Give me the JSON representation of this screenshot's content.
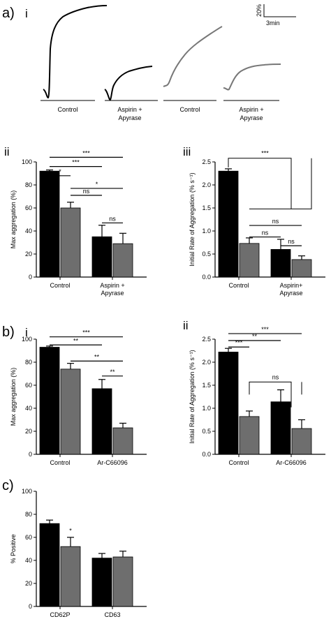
{
  "panel_labels": {
    "a": "a)",
    "a_i": "i",
    "a_ii": "ii",
    "a_iii": "iii",
    "b": "b)",
    "b_i": "i",
    "b_ii": "ii",
    "c": "c)"
  },
  "traces": {
    "scale_y": "20%",
    "scale_x": "3min",
    "labels": [
      "Control",
      "Aspirin +",
      "Apyrase",
      "Control",
      "Aspirin +",
      "Apyrase"
    ]
  },
  "colors": {
    "black_series": "#000000",
    "grey_series": "#6e6e6e"
  },
  "chart_data": [
    {
      "id": "a-ii",
      "type": "bar",
      "ylabel": "Max aggregation (%)",
      "ylim": [
        0,
        100
      ],
      "yticks": [
        0,
        20,
        40,
        60,
        80,
        100
      ],
      "ytick_labels": [
        "0",
        "20",
        "40",
        "60",
        "80",
        "100"
      ],
      "categories": [
        "Control",
        "Aspirin +|Apyrase"
      ],
      "series": [
        {
          "values": [
            92,
            35
          ],
          "errors": [
            1,
            10
          ]
        },
        {
          "values": [
            60,
            29
          ],
          "errors": [
            5,
            9
          ]
        }
      ],
      "significance": [
        {
          "label": "***",
          "y": 104,
          "x1": [
            0,
            0
          ],
          "x2": [
            1,
            1
          ],
          "style": "line"
        },
        {
          "label": "***",
          "y": 96,
          "x1": [
            0,
            0
          ],
          "x2": [
            1,
            0
          ],
          "style": "line"
        },
        {
          "label": "*",
          "y": 88,
          "x1": [
            0,
            0
          ],
          "x2": [
            0,
            1
          ],
          "style": "line"
        },
        {
          "label": "ns",
          "y": 71,
          "x1": [
            0,
            1
          ],
          "x2": [
            1,
            0
          ],
          "style": "line"
        },
        {
          "label": "*",
          "y": 77,
          "x1": [
            0,
            1
          ],
          "x2": [
            1,
            1
          ],
          "style": "line"
        },
        {
          "label": "ns",
          "y": 47,
          "x1": [
            1,
            0
          ],
          "x2": [
            1,
            1
          ],
          "style": "line"
        }
      ]
    },
    {
      "id": "a-iii",
      "type": "bar",
      "ylabel": "Initial Rate of Aggregation (% s⁻¹)",
      "ylim": [
        0,
        2.5
      ],
      "yticks": [
        0,
        0.5,
        1,
        1.5,
        2,
        2.5
      ],
      "ytick_labels": [
        "0.0",
        "0.5",
        "1.0",
        "1.5",
        "2.0",
        "2.5"
      ],
      "categories": [
        "Control",
        "Aspirin+|Apyrase"
      ],
      "series": [
        {
          "values": [
            2.3,
            0.6
          ],
          "errors": [
            0.05,
            0.22
          ]
        },
        {
          "values": [
            0.73,
            0.38
          ],
          "errors": [
            0.12,
            0.08
          ]
        }
      ],
      "significance": [
        {
          "label": "***",
          "y": 2.58,
          "x1": [
            0,
            0
          ],
          "x2": [
            1,
            0.5
          ],
          "style": "bracket",
          "drop": 1.1
        },
        {
          "label": "ns",
          "y": 1.12,
          "x1": [
            0,
            1
          ],
          "x2": [
            1,
            1
          ],
          "style": "line"
        },
        {
          "label": "ns",
          "y": 0.87,
          "x1": [
            0,
            1
          ],
          "x2": [
            1,
            0
          ],
          "style": "line"
        },
        {
          "label": "ns",
          "y": 0.68,
          "x1": [
            1,
            0
          ],
          "x2": [
            1,
            1
          ],
          "style": "line"
        }
      ]
    },
    {
      "id": "b-i",
      "type": "bar",
      "ylabel": "Max aggregation (%)",
      "ylim": [
        0,
        100
      ],
      "yticks": [
        0,
        20,
        40,
        60,
        80,
        100
      ],
      "ytick_labels": [
        "0",
        "20",
        "40",
        "60",
        "80",
        "100"
      ],
      "categories": [
        "Control",
        "Ar-C66096"
      ],
      "series": [
        {
          "values": [
            93,
            57
          ],
          "errors": [
            1,
            8
          ]
        },
        {
          "values": [
            74,
            23
          ],
          "errors": [
            5,
            4
          ]
        }
      ],
      "significance": [
        {
          "label": "***",
          "y": 102,
          "x1": [
            0,
            0
          ],
          "x2": [
            1,
            1
          ],
          "style": "line"
        },
        {
          "label": "**",
          "y": 95,
          "x1": [
            0,
            0
          ],
          "x2": [
            1,
            0
          ],
          "style": "line"
        },
        {
          "label": "**",
          "y": 81,
          "x1": [
            0,
            1
          ],
          "x2": [
            1,
            1
          ],
          "style": "line"
        },
        {
          "label": "**",
          "y": 68,
          "x1": [
            1,
            0
          ],
          "x2": [
            1,
            1
          ],
          "style": "line"
        }
      ]
    },
    {
      "id": "b-ii",
      "type": "bar",
      "ylabel": "Initial Rate of Aggregation (% s⁻¹)",
      "ylim": [
        0,
        2.5
      ],
      "yticks": [
        0,
        0.5,
        1,
        1.5,
        2,
        2.5
      ],
      "ytick_labels": [
        "0.0",
        "0.5",
        "1.0",
        "1.5",
        "2.0",
        "2.5"
      ],
      "categories": [
        "Control",
        "Ar-C66096"
      ],
      "series": [
        {
          "values": [
            2.22,
            1.14
          ],
          "errors": [
            0.08,
            0.26
          ]
        },
        {
          "values": [
            0.82,
            0.56
          ],
          "errors": [
            0.12,
            0.19
          ]
        }
      ],
      "significance": [
        {
          "label": "***",
          "y": 2.62,
          "x1": [
            0,
            0
          ],
          "x2": [
            1,
            1
          ],
          "style": "line"
        },
        {
          "label": "**",
          "y": 2.47,
          "x1": [
            0,
            0
          ],
          "x2": [
            1,
            0
          ],
          "style": "line"
        },
        {
          "label": "***",
          "y": 2.33,
          "x1": [
            0,
            0
          ],
          "x2": [
            0,
            1
          ],
          "style": "line"
        },
        {
          "label": "ns",
          "y": 1.57,
          "x1": [
            0,
            1
          ],
          "x2": [
            1,
            1
          ],
          "style": "bracket",
          "drop": 0.55
        }
      ]
    },
    {
      "id": "c",
      "type": "bar",
      "ylabel": "% Positive",
      "ylim": [
        0,
        100
      ],
      "yticks": [
        0,
        20,
        40,
        60,
        80,
        100
      ],
      "ytick_labels": [
        "0",
        "20",
        "40",
        "60",
        "80",
        "100"
      ],
      "categories": [
        "CD62P",
        "CD63"
      ],
      "series": [
        {
          "values": [
            72,
            42
          ],
          "errors": [
            3,
            4
          ]
        },
        {
          "values": [
            52,
            43
          ],
          "errors": [
            8,
            5
          ]
        }
      ],
      "significance": [
        {
          "label": "*",
          "y": 64,
          "x1": [
            0,
            1
          ],
          "x2": [
            0,
            1
          ],
          "style": "star"
        }
      ]
    }
  ]
}
